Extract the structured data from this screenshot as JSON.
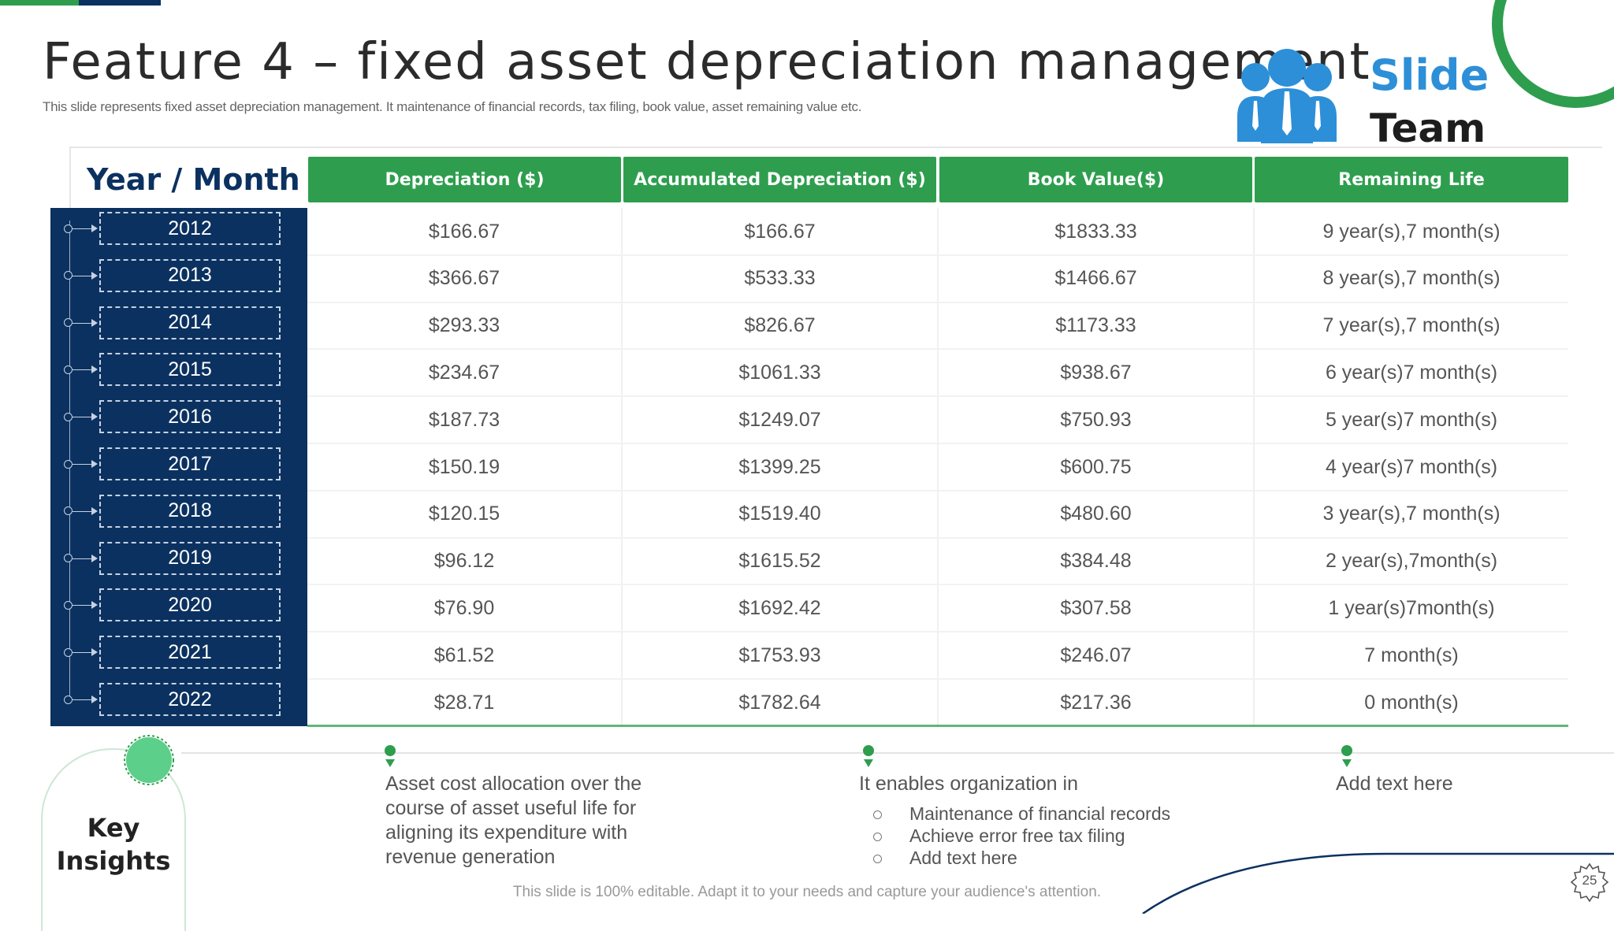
{
  "slide": {
    "title": "Feature 4 – fixed asset depreciation management",
    "subtitle": "This slide represents fixed asset depreciation management. It maintenance of financial records, tax filing, book value,  asset remaining value etc.",
    "footer_note": "This slide is 100% editable. Adapt it to your needs and capture your audience's attention.",
    "page_number": "25",
    "brand": {
      "line1": "Slide",
      "line2": "Team"
    },
    "colors": {
      "green": "#2e9e4e",
      "navy": "#0b3160",
      "blue": "#2d8fd8"
    }
  },
  "table": {
    "row_header_label": "Year / Month",
    "columns": [
      "Depreciation ($)",
      "Accumulated Depreciation ($)",
      "Book Value($)",
      "Remaining Life"
    ],
    "rows": [
      {
        "year": "2012",
        "cells": [
          "$166.67",
          "$166.67",
          "$1833.33",
          "9 year(s),7  month(s)"
        ]
      },
      {
        "year": "2013",
        "cells": [
          "$366.67",
          "$533.33",
          "$1466.67",
          "8 year(s),7  month(s)"
        ]
      },
      {
        "year": "2014",
        "cells": [
          "$293.33",
          "$826.67",
          "$1173.33",
          "7 year(s),7  month(s)"
        ]
      },
      {
        "year": "2015",
        "cells": [
          "$234.67",
          "$1061.33",
          "$938.67",
          "6 year(s)7  month(s)"
        ]
      },
      {
        "year": "2016",
        "cells": [
          "$187.73",
          "$1249.07",
          "$750.93",
          "5 year(s)7  month(s)"
        ]
      },
      {
        "year": "2017",
        "cells": [
          "$150.19",
          "$1399.25",
          "$600.75",
          "4 year(s)7  month(s)"
        ]
      },
      {
        "year": "2018",
        "cells": [
          "$120.15",
          "$1519.40",
          "$480.60",
          "3 year(s),7  month(s)"
        ]
      },
      {
        "year": "2019",
        "cells": [
          "$96.12",
          "$1615.52",
          "$384.48",
          "2 year(s),7month(s)"
        ]
      },
      {
        "year": "2020",
        "cells": [
          "$76.90",
          "$1692.42",
          "$307.58",
          "1 year(s)7month(s)"
        ]
      },
      {
        "year": "2021",
        "cells": [
          "$61.52",
          "$1753.93",
          "$246.07",
          "7 month(s)"
        ]
      },
      {
        "year": "2022",
        "cells": [
          "$28.71",
          "$1782.64",
          "$217.36",
          "0 month(s)"
        ]
      }
    ]
  },
  "key_insights": {
    "label_line1": "Key",
    "label_line2": "Insights",
    "insight1": "Asset cost allocation over the course of asset useful life for aligning its expenditure with revenue generation",
    "insight2_heading": "It enables organization in",
    "insight2_bullets": [
      "Maintenance of financial records",
      "Achieve error free tax filing",
      "Add text here"
    ],
    "insight3": "Add text here"
  }
}
